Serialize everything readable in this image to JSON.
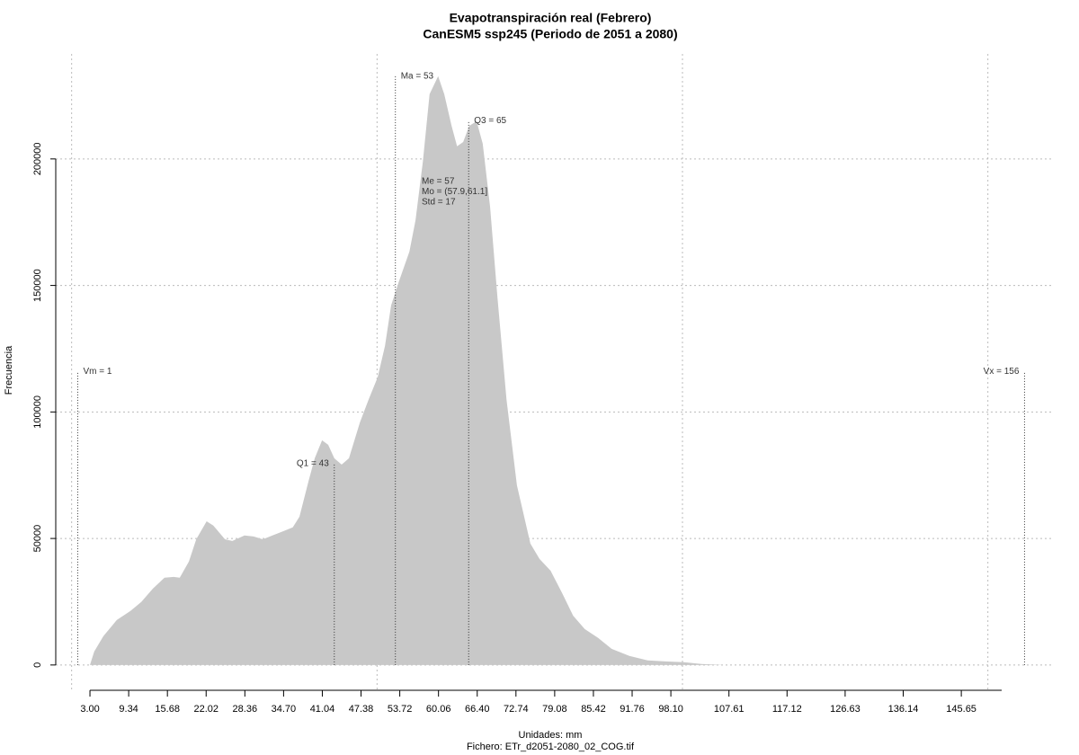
{
  "chart_data": {
    "type": "area",
    "title": "Evapotranspiración real (Febrero)",
    "subtitle": "CanESM5 ssp245 (Periodo de 2051 a 2080)",
    "xlabel": "Unidades: mm",
    "caption": "Fichero: ETr_d2051-2080_02_COG.tif",
    "ylabel": "Frecuencia",
    "color": "#c8c8c8",
    "grid": true,
    "x": [
      3.0,
      3.7,
      5.2,
      7.4,
      9.6,
      11.4,
      13.3,
      15.2,
      16.7,
      17.7,
      19.2,
      20.4,
      22.1,
      23.2,
      25.1,
      26.3,
      28.3,
      29.8,
      31.3,
      33.2,
      34.7,
      36.2,
      37.3,
      38.8,
      39.8,
      41.0,
      42.0,
      43.0,
      44.2,
      45.4,
      47.2,
      48.6,
      50.1,
      51.3,
      52.3,
      53.5,
      55.3,
      56.3,
      57.5,
      58.6,
      60.0,
      61.0,
      62.2,
      63.1,
      64.1,
      65.1,
      66.3,
      67.3,
      68.5,
      69.7,
      71.2,
      72.9,
      75.1,
      76.6,
      78.4,
      80.3,
      82.1,
      84.0,
      86.2,
      88.4,
      91.3,
      94.3,
      97.2,
      100.2,
      103.1,
      106.8,
      154.6
    ],
    "values": [
      0,
      5300,
      11400,
      17800,
      21300,
      24900,
      30200,
      34500,
      34800,
      34500,
      40900,
      49700,
      56800,
      55100,
      49700,
      49000,
      51200,
      50800,
      49700,
      51500,
      52900,
      54400,
      58600,
      72800,
      81700,
      88800,
      87000,
      81700,
      79200,
      81700,
      95900,
      104800,
      113700,
      126100,
      142100,
      151000,
      163400,
      175800,
      198900,
      225600,
      232700,
      225600,
      213100,
      205000,
      206700,
      213100,
      214900,
      206000,
      181200,
      145600,
      104800,
      71000,
      48000,
      41900,
      37300,
      28400,
      19500,
      14200,
      10700,
      6400,
      3600,
      1800,
      1400,
      1100,
      400,
      0,
      0
    ],
    "xlim": [
      -2.6,
      160.5
    ],
    "ylim": [
      -10000,
      241500
    ],
    "xticks": [
      {
        "value": 3.0,
        "label": "3.00"
      },
      {
        "value": 9.34,
        "label": "9.34"
      },
      {
        "value": 15.68,
        "label": "15.68"
      },
      {
        "value": 22.02,
        "label": "22.02"
      },
      {
        "value": 28.36,
        "label": "28.36"
      },
      {
        "value": 34.7,
        "label": "34.70"
      },
      {
        "value": 41.04,
        "label": "41.04"
      },
      {
        "value": 47.38,
        "label": "47.38"
      },
      {
        "value": 53.72,
        "label": "53.72"
      },
      {
        "value": 60.06,
        "label": "60.06"
      },
      {
        "value": 66.4,
        "label": "66.40"
      },
      {
        "value": 72.74,
        "label": "72.74"
      },
      {
        "value": 79.08,
        "label": "79.08"
      },
      {
        "value": 85.42,
        "label": "85.42"
      },
      {
        "value": 91.76,
        "label": "91.76"
      },
      {
        "value": 98.1,
        "label": "98.10"
      },
      {
        "value": 107.61,
        "label": "107.61"
      },
      {
        "value": 117.12,
        "label": "117.12"
      },
      {
        "value": 126.63,
        "label": "126.63"
      },
      {
        "value": 136.14,
        "label": "136.14"
      },
      {
        "value": 145.65,
        "label": "145.65"
      }
    ],
    "xgrid": [
      0,
      50,
      100,
      150
    ],
    "yticks": [
      0,
      50000,
      100000,
      150000,
      200000
    ],
    "annotations": [
      {
        "label": "Vm = 1",
        "x": 1,
        "y": 116000
      },
      {
        "label": "Q1 = 43",
        "x": 43,
        "y": 79500
      },
      {
        "label": "Ma = 53",
        "x": 53,
        "y": 232700
      },
      {
        "label": "Q3 = 65",
        "x": 65,
        "y": 215000
      },
      {
        "label": "Vx = 156",
        "x": 156,
        "y": 116000
      }
    ],
    "stats": [
      "Me = 57",
      "Mo = (57.9,61.1]",
      "Std = 17"
    ]
  }
}
